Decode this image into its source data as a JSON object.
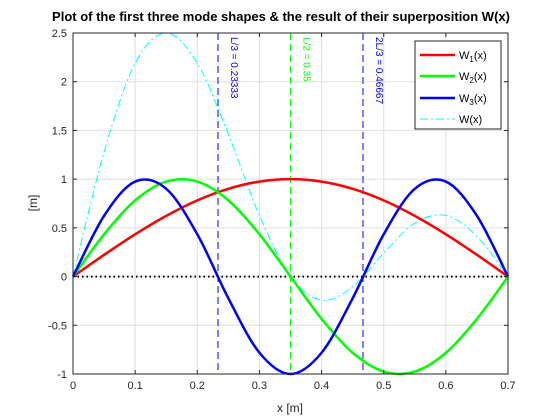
{
  "chart_data": {
    "type": "line",
    "title": "Plot of the first three mode shapes & the result of their superposition W(x)",
    "xlabel": "x [m]",
    "ylabel": "[m]",
    "xlim": [
      0,
      0.7
    ],
    "ylim": [
      -1,
      2.5
    ],
    "xticks": [
      0,
      0.1,
      0.2,
      0.3,
      0.4,
      0.5,
      0.6,
      0.7
    ],
    "xtick_labels": [
      "0",
      "0.1",
      "0.2",
      "0.3",
      "0.4",
      "0.5",
      "0.6",
      "0.7"
    ],
    "yticks": [
      -1,
      -0.5,
      0,
      0.5,
      1,
      1.5,
      2,
      2.5
    ],
    "ytick_labels": [
      "-1",
      "-0.5",
      "0",
      "0.5",
      "1",
      "1.5",
      "2",
      "2.5"
    ],
    "grid": true,
    "legend_position": "top-right",
    "series": [
      {
        "name": "W₁(x)",
        "name_main": "W",
        "name_sub": "1",
        "name_suffix": "(x)",
        "color": "#ff0000",
        "style": "solid",
        "x": [
          0,
          0.05,
          0.1,
          0.15,
          0.2,
          0.25,
          0.3,
          0.35,
          0.4,
          0.45,
          0.5,
          0.55,
          0.6,
          0.65,
          0.7
        ],
        "y": [
          0,
          0.223,
          0.434,
          0.623,
          0.782,
          0.901,
          0.975,
          1.0,
          0.975,
          0.901,
          0.782,
          0.623,
          0.434,
          0.223,
          0
        ]
      },
      {
        "name": "W₂(x)",
        "name_main": "W",
        "name_sub": "2",
        "name_suffix": "(x)",
        "color": "#00ff00",
        "style": "solid",
        "x": [
          0,
          0.05,
          0.1,
          0.15,
          0.2,
          0.25,
          0.3,
          0.35,
          0.4,
          0.45,
          0.5,
          0.55,
          0.6,
          0.65,
          0.7
        ],
        "y": [
          0,
          0.434,
          0.782,
          0.975,
          0.975,
          0.782,
          0.434,
          0,
          -0.434,
          -0.782,
          -0.975,
          -0.975,
          -0.782,
          -0.434,
          0
        ]
      },
      {
        "name": "W₃(x)",
        "name_main": "W",
        "name_sub": "3",
        "name_suffix": "(x)",
        "color": "#0000ff",
        "style": "solid",
        "x": [
          0,
          0.05,
          0.1,
          0.15,
          0.2,
          0.25,
          0.3,
          0.35,
          0.4,
          0.45,
          0.5,
          0.55,
          0.6,
          0.65,
          0.7
        ],
        "y": [
          0,
          0.623,
          0.975,
          0.901,
          0.434,
          -0.223,
          -0.782,
          -1.0,
          -0.782,
          -0.223,
          0.434,
          0.901,
          0.975,
          0.623,
          0
        ]
      },
      {
        "name": "W(x)",
        "name_main": "W(x)",
        "name_sub": "",
        "name_suffix": "",
        "color": "#00ffff",
        "style": "dashdot",
        "x": [
          0,
          0.05,
          0.1,
          0.15,
          0.2,
          0.25,
          0.3,
          0.35,
          0.4,
          0.45,
          0.5,
          0.55,
          0.6,
          0.65,
          0.7
        ],
        "y": [
          0,
          1.28,
          2.191,
          2.499,
          2.191,
          1.46,
          0.627,
          0,
          -0.241,
          -0.104,
          0.241,
          0.549,
          0.627,
          0.412,
          0
        ]
      }
    ],
    "vlines": [
      {
        "x": 0.23333,
        "label": "L/3 = 0.23333",
        "color": "#0000ff"
      },
      {
        "x": 0.35,
        "label": "L/2 = 0.35",
        "color": "#00ff00"
      },
      {
        "x": 0.46667,
        "label": "2L/3 = 0.46667",
        "color": "#0000ff"
      }
    ],
    "hline": {
      "y": 0,
      "color": "#000000",
      "style": "dotted"
    }
  }
}
